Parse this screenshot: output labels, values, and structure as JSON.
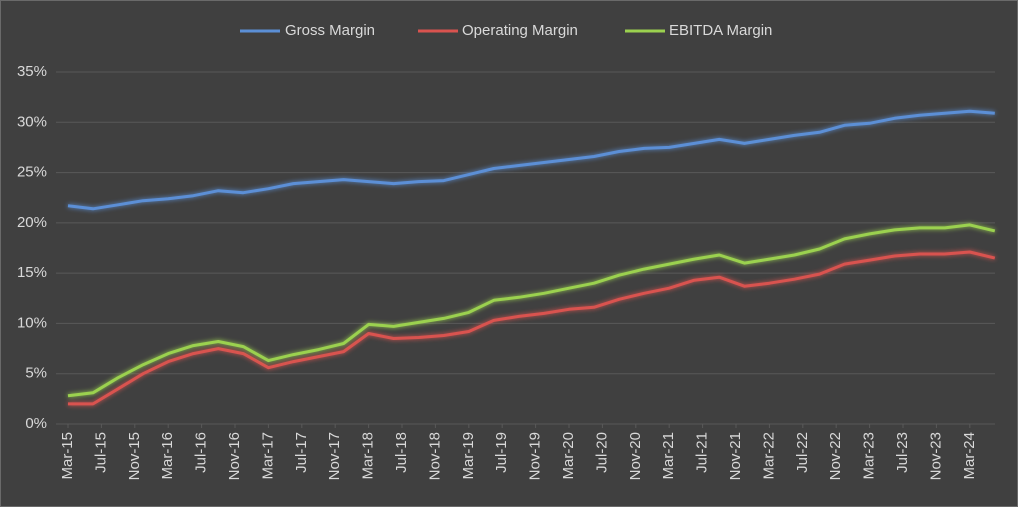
{
  "chart_data": {
    "type": "line",
    "x": [
      "2015-03",
      "2015-06",
      "2015-09",
      "2015-12",
      "2016-03",
      "2016-06",
      "2016-09",
      "2016-12",
      "2017-03",
      "2017-06",
      "2017-09",
      "2017-12",
      "2018-03",
      "2018-06",
      "2018-09",
      "2018-12",
      "2019-03",
      "2019-06",
      "2019-09",
      "2019-12",
      "2020-03",
      "2020-06",
      "2020-09",
      "2020-12",
      "2021-03",
      "2021-06",
      "2021-09",
      "2021-12",
      "2022-03",
      "2022-06",
      "2022-09",
      "2022-12",
      "2023-03",
      "2023-06",
      "2023-09",
      "2023-12",
      "2024-03",
      "2024-06"
    ],
    "series": [
      {
        "name": "Gross Margin",
        "color": "#5b8fd6",
        "values": [
          21.7,
          21.4,
          21.8,
          22.2,
          22.4,
          22.7,
          23.2,
          23.0,
          23.4,
          23.9,
          24.1,
          24.3,
          24.1,
          23.9,
          24.1,
          24.2,
          24.8,
          25.4,
          25.7,
          26.0,
          26.3,
          26.6,
          27.1,
          27.4,
          27.5,
          27.9,
          28.3,
          27.9,
          28.3,
          28.7,
          29.0,
          29.7,
          29.9,
          30.4,
          30.7,
          30.9,
          31.1,
          30.9
        ]
      },
      {
        "name": "Operating Margin",
        "color": "#d9534f",
        "values": [
          2.0,
          2.0,
          3.5,
          5.0,
          6.2,
          7.0,
          7.5,
          7.0,
          5.6,
          6.2,
          6.7,
          7.2,
          9.0,
          8.5,
          8.6,
          8.8,
          9.2,
          10.3,
          10.7,
          11.0,
          11.4,
          11.6,
          12.4,
          13.0,
          13.5,
          14.3,
          14.6,
          13.7,
          14.0,
          14.4,
          14.9,
          15.9,
          16.3,
          16.7,
          16.9,
          16.9,
          17.1,
          16.5
        ]
      },
      {
        "name": "EBITDA Margin",
        "color": "#9bd14f",
        "values": [
          2.8,
          3.1,
          4.6,
          5.9,
          7.0,
          7.8,
          8.2,
          7.7,
          6.3,
          6.9,
          7.4,
          8.0,
          9.9,
          9.7,
          10.1,
          10.5,
          11.1,
          12.3,
          12.6,
          13.0,
          13.5,
          14.0,
          14.8,
          15.4,
          15.9,
          16.4,
          16.8,
          16.0,
          16.4,
          16.8,
          17.4,
          18.4,
          18.9,
          19.3,
          19.5,
          19.5,
          19.8,
          19.2
        ]
      }
    ],
    "ylim": [
      0,
      35
    ],
    "yticks": [
      {
        "value": 0,
        "label": "0%"
      },
      {
        "value": 5,
        "label": "5%"
      },
      {
        "value": 10,
        "label": "10%"
      },
      {
        "value": 15,
        "label": "15%"
      },
      {
        "value": 20,
        "label": "20%"
      },
      {
        "value": 25,
        "label": "25%"
      },
      {
        "value": 30,
        "label": "30%"
      },
      {
        "value": 35,
        "label": "35%"
      }
    ],
    "xticks": [
      {
        "value": "2015-03",
        "label": "Mar-15"
      },
      {
        "value": "2015-07",
        "label": "Jul-15"
      },
      {
        "value": "2015-11",
        "label": "Nov-15"
      },
      {
        "value": "2016-03",
        "label": "Mar-16"
      },
      {
        "value": "2016-07",
        "label": "Jul-16"
      },
      {
        "value": "2016-11",
        "label": "Nov-16"
      },
      {
        "value": "2017-03",
        "label": "Mar-17"
      },
      {
        "value": "2017-07",
        "label": "Jul-17"
      },
      {
        "value": "2017-11",
        "label": "Nov-17"
      },
      {
        "value": "2018-03",
        "label": "Mar-18"
      },
      {
        "value": "2018-07",
        "label": "Jul-18"
      },
      {
        "value": "2018-11",
        "label": "Nov-18"
      },
      {
        "value": "2019-03",
        "label": "Mar-19"
      },
      {
        "value": "2019-07",
        "label": "Jul-19"
      },
      {
        "value": "2019-11",
        "label": "Nov-19"
      },
      {
        "value": "2020-03",
        "label": "Mar-20"
      },
      {
        "value": "2020-07",
        "label": "Jul-20"
      },
      {
        "value": "2020-11",
        "label": "Nov-20"
      },
      {
        "value": "2021-03",
        "label": "Mar-21"
      },
      {
        "value": "2021-07",
        "label": "Jul-21"
      },
      {
        "value": "2021-11",
        "label": "Nov-21"
      },
      {
        "value": "2022-03",
        "label": "Mar-22"
      },
      {
        "value": "2022-07",
        "label": "Jul-22"
      },
      {
        "value": "2022-11",
        "label": "Nov-22"
      },
      {
        "value": "2023-03",
        "label": "Mar-23"
      },
      {
        "value": "2023-07",
        "label": "Jul-23"
      },
      {
        "value": "2023-11",
        "label": "Nov-23"
      },
      {
        "value": "2024-03",
        "label": "Mar-24"
      }
    ],
    "grid": true,
    "legend": "top"
  }
}
